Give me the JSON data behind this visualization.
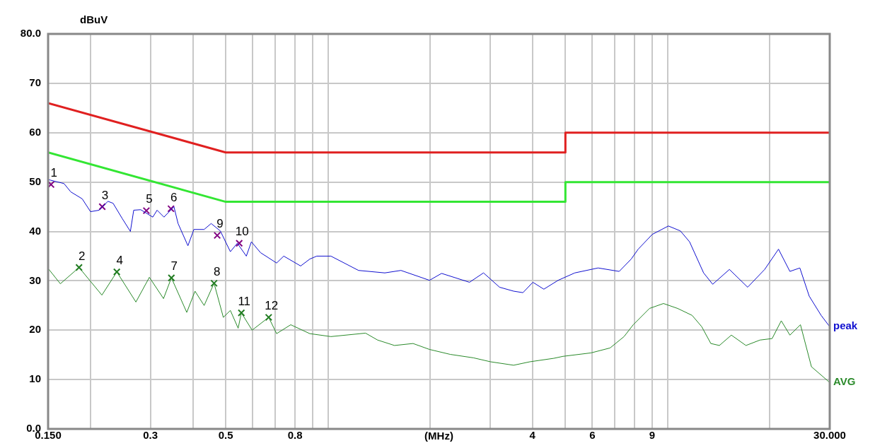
{
  "chart_data": {
    "type": "line",
    "xlabel": "(MHz)",
    "ylabel": "dBuV",
    "log": "x",
    "grid": true,
    "legend": false,
    "xlim": [
      0.15,
      30
    ],
    "ylim": [
      0,
      80
    ],
    "xticks": [
      {
        "value": 0.15,
        "label": "0.150"
      },
      {
        "value": 0.2,
        "label": null
      },
      {
        "value": 0.3,
        "label": "0.3"
      },
      {
        "value": 0.4,
        "label": null
      },
      {
        "value": 0.5,
        "label": "0.5"
      },
      {
        "value": 0.6,
        "label": null
      },
      {
        "value": 0.7,
        "label": null
      },
      {
        "value": 0.8,
        "label": "0.8"
      },
      {
        "value": 0.9,
        "label": null
      },
      {
        "value": 1,
        "label": null
      },
      {
        "value": 2,
        "label": null
      },
      {
        "value": 3,
        "label": null
      },
      {
        "value": 4,
        "label": "4"
      },
      {
        "value": 5,
        "label": null
      },
      {
        "value": 6,
        "label": "6"
      },
      {
        "value": 7,
        "label": null
      },
      {
        "value": 8,
        "label": null
      },
      {
        "value": 9,
        "label": "9"
      },
      {
        "value": 10,
        "label": null
      },
      {
        "value": 20,
        "label": null
      },
      {
        "value": 30,
        "label": "30.000"
      }
    ],
    "yticks": [
      {
        "value": 0,
        "label": "0.0"
      },
      10,
      20,
      30,
      40,
      50,
      60,
      70,
      {
        "value": 80,
        "label": "80.0"
      }
    ],
    "marker": "none",
    "line_style": "solid",
    "series": [
      {
        "color": "#e02020",
        "x": [
          0.15,
          0.5,
          5,
          5,
          30
        ],
        "values": [
          66,
          56,
          56,
          60,
          60
        ]
      },
      {
        "color": "#33e633",
        "x": [
          0.15,
          0.5,
          5,
          5,
          30
        ],
        "values": [
          56,
          46,
          46,
          50,
          50
        ]
      },
      {
        "name": "peak",
        "color": "#1010d0",
        "x": [
          0.15,
          0.167,
          0.175,
          0.189,
          0.2,
          0.212,
          0.225,
          0.233,
          0.248,
          0.262,
          0.268,
          0.281,
          0.305,
          0.314,
          0.329,
          0.352,
          0.362,
          0.387,
          0.403,
          0.432,
          0.453,
          0.482,
          0.516,
          0.541,
          0.575,
          0.595,
          0.633,
          0.706,
          0.741,
          0.831,
          0.884,
          0.927,
          1.02,
          1.23,
          1.47,
          1.64,
          1.99,
          2.16,
          2.61,
          2.87,
          3.2,
          3.52,
          3.75,
          4.01,
          4.32,
          4.76,
          5.33,
          6.24,
          7.2,
          7.81,
          8.19,
          9.01,
          10.05,
          10.9,
          11.6,
          12.76,
          13.57,
          15.2,
          17.2,
          19.3,
          21.2,
          22.9,
          24.5,
          26.1,
          28.3,
          30
        ],
        "values": [
          50.5,
          49.7,
          48,
          46.6,
          44,
          44.3,
          46.1,
          45.7,
          42.6,
          40,
          44.3,
          44.4,
          42.9,
          44.3,
          42.9,
          45,
          41.6,
          37.1,
          40.4,
          40.4,
          41.6,
          40.1,
          35.9,
          37.6,
          35,
          37.9,
          35.7,
          33.6,
          35,
          33,
          34.4,
          35,
          35,
          32.1,
          31.6,
          32.1,
          30.1,
          31.5,
          29.7,
          31.6,
          28.7,
          27.9,
          27.6,
          29.7,
          28.3,
          30.1,
          31.6,
          32.6,
          31.9,
          34.4,
          36.4,
          39.4,
          41.1,
          40.1,
          37.9,
          31.6,
          29.3,
          32.3,
          28.7,
          32.3,
          36.4,
          31.9,
          32.6,
          26.9,
          23,
          20.7
        ]
      },
      {
        "name": "AVG",
        "color": "#2a8a2a",
        "x": [
          0.15,
          0.163,
          0.185,
          0.216,
          0.239,
          0.272,
          0.298,
          0.328,
          0.346,
          0.384,
          0.406,
          0.432,
          0.462,
          0.492,
          0.516,
          0.544,
          0.556,
          0.598,
          0.669,
          0.706,
          0.777,
          0.884,
          1.02,
          1.29,
          1.4,
          1.57,
          1.78,
          1.99,
          2.29,
          2.68,
          3.01,
          3.52,
          3.93,
          4.62,
          4.92,
          5.95,
          6.77,
          7.44,
          7.92,
          8.84,
          9.72,
          10.7,
          11.8,
          12.6,
          13.4,
          14.2,
          15.4,
          17,
          18.7,
          20.3,
          21.6,
          22.9,
          24.6,
          26.5,
          30
        ],
        "values": [
          32.5,
          29.4,
          32.7,
          27.1,
          31.8,
          25.7,
          30.7,
          26.4,
          30.6,
          23.6,
          27.9,
          25,
          29.5,
          22.6,
          24,
          20.4,
          23.5,
          20,
          22.6,
          19.3,
          21.1,
          19.3,
          18.7,
          19.4,
          18,
          16.9,
          17.3,
          16.1,
          15.1,
          14.4,
          13.6,
          12.9,
          13.6,
          14.3,
          14.7,
          15.4,
          16.4,
          18.7,
          21.1,
          24.4,
          25.4,
          24.4,
          23,
          20.7,
          17.3,
          16.9,
          19,
          16.9,
          18,
          18.3,
          21.9,
          19,
          21.1,
          12.6,
          9.4
        ]
      },
      {
        "type": "scatter",
        "marker": "cross",
        "color": "#800080",
        "x": [
          0.153,
          0.2165,
          0.292,
          0.345,
          0.472,
          0.548
        ],
        "values": [
          49.5,
          45,
          44.2,
          44.6,
          39.2,
          37.6
        ]
      },
      {
        "type": "scatter",
        "marker": "cross",
        "color": "#207a20",
        "x": [
          0.185,
          0.239,
          0.346,
          0.462,
          0.556,
          0.669
        ],
        "values": [
          32.7,
          31.8,
          30.6,
          29.5,
          23.5,
          22.6
        ]
      }
    ],
    "annotations": [
      {
        "text": "1",
        "x": 0.153,
        "y": 49.5
      },
      {
        "text": "2",
        "x": 0.185,
        "y": 32.7
      },
      {
        "text": "3",
        "x": 0.2165,
        "y": 45
      },
      {
        "text": "4",
        "x": 0.239,
        "y": 31.8
      },
      {
        "text": "5",
        "x": 0.292,
        "y": 44.2
      },
      {
        "text": "6",
        "x": 0.345,
        "y": 44.6
      },
      {
        "text": "7",
        "x": 0.346,
        "y": 30.6
      },
      {
        "text": "8",
        "x": 0.462,
        "y": 29.5
      },
      {
        "text": "9",
        "x": 0.472,
        "y": 39.2
      },
      {
        "text": "10",
        "x": 0.548,
        "y": 37.6
      },
      {
        "text": "11",
        "x": 0.556,
        "y": 23.5
      },
      {
        "text": "12",
        "x": 0.669,
        "y": 22.6
      }
    ]
  }
}
